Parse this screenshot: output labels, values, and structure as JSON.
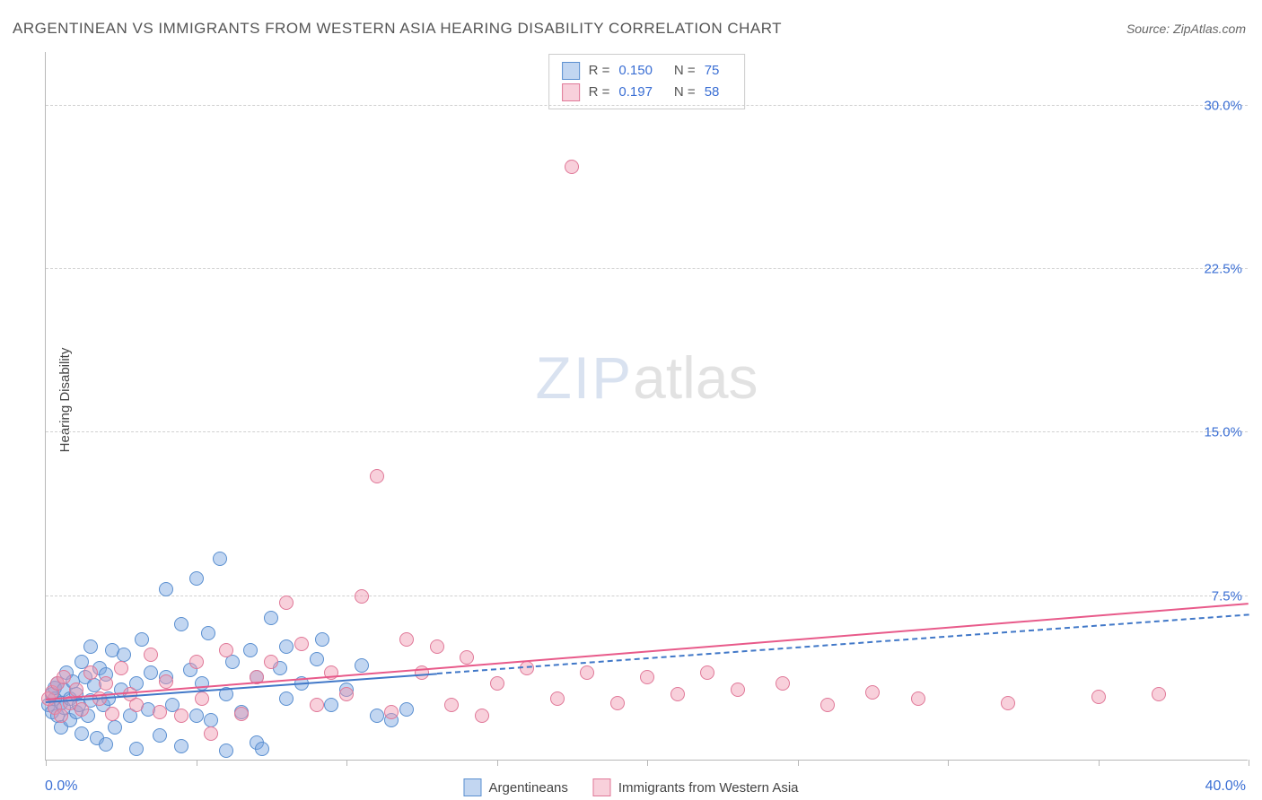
{
  "title": "ARGENTINEAN VS IMMIGRANTS FROM WESTERN ASIA HEARING DISABILITY CORRELATION CHART",
  "source_prefix": "Source: ",
  "source_name": "ZipAtlas.com",
  "watermark_zip": "ZIP",
  "watermark_atlas": "atlas",
  "yaxis_title": "Hearing Disability",
  "chart": {
    "type": "scatter",
    "xlim": [
      0,
      40
    ],
    "ylim": [
      0,
      32.5
    ],
    "x_label_start": "0.0%",
    "x_label_end": "40.0%",
    "x_label_color": "#3b6fd4",
    "y_ticks": [
      7.5,
      15.0,
      22.5,
      30.0
    ],
    "y_tick_labels": [
      "7.5%",
      "15.0%",
      "22.5%",
      "30.0%"
    ],
    "y_tick_color": "#3b6fd4",
    "x_tick_positions": [
      0,
      5,
      10,
      15,
      20,
      25,
      30,
      35,
      40
    ],
    "grid_color": "#d0d0d0",
    "background": "#ffffff",
    "point_radius": 8,
    "series": [
      {
        "name": "Argentineans",
        "fill": "rgba(120,165,225,0.45)",
        "stroke": "#5a8fd0",
        "trend": {
          "x1": 0,
          "y1": 2.6,
          "x2": 40,
          "y2": 6.6,
          "color": "#4178c8",
          "width": 2.4,
          "style": "solid-then-dashed",
          "solid_until_x": 13
        },
        "points": [
          [
            0.1,
            2.5
          ],
          [
            0.2,
            3.0
          ],
          [
            0.2,
            2.2
          ],
          [
            0.3,
            2.8
          ],
          [
            0.3,
            3.3
          ],
          [
            0.4,
            2.0
          ],
          [
            0.4,
            3.5
          ],
          [
            0.5,
            2.6
          ],
          [
            0.5,
            1.5
          ],
          [
            0.6,
            3.2
          ],
          [
            0.6,
            2.4
          ],
          [
            0.7,
            4.0
          ],
          [
            0.8,
            2.8
          ],
          [
            0.8,
            1.8
          ],
          [
            0.9,
            3.6
          ],
          [
            1.0,
            2.2
          ],
          [
            1.0,
            3.0
          ],
          [
            1.1,
            2.5
          ],
          [
            1.2,
            4.5
          ],
          [
            1.2,
            1.2
          ],
          [
            1.3,
            3.8
          ],
          [
            1.4,
            2.0
          ],
          [
            1.5,
            5.2
          ],
          [
            1.5,
            2.7
          ],
          [
            1.6,
            3.4
          ],
          [
            1.7,
            1.0
          ],
          [
            1.8,
            4.2
          ],
          [
            1.9,
            2.5
          ],
          [
            2.0,
            3.9
          ],
          [
            2.0,
            0.7
          ],
          [
            2.1,
            2.8
          ],
          [
            2.2,
            5.0
          ],
          [
            2.3,
            1.5
          ],
          [
            2.5,
            3.2
          ],
          [
            2.6,
            4.8
          ],
          [
            2.8,
            2.0
          ],
          [
            3.0,
            3.5
          ],
          [
            3.0,
            0.5
          ],
          [
            3.2,
            5.5
          ],
          [
            3.4,
            2.3
          ],
          [
            3.5,
            4.0
          ],
          [
            3.8,
            1.1
          ],
          [
            4.0,
            3.8
          ],
          [
            4.0,
            7.8
          ],
          [
            4.2,
            2.5
          ],
          [
            4.5,
            6.2
          ],
          [
            4.5,
            0.6
          ],
          [
            4.8,
            4.1
          ],
          [
            5.0,
            8.3
          ],
          [
            5.0,
            2.0
          ],
          [
            5.2,
            3.5
          ],
          [
            5.4,
            5.8
          ],
          [
            5.5,
            1.8
          ],
          [
            5.8,
            9.2
          ],
          [
            6.0,
            3.0
          ],
          [
            6.0,
            0.4
          ],
          [
            6.2,
            4.5
          ],
          [
            6.5,
            2.2
          ],
          [
            6.8,
            5.0
          ],
          [
            7.0,
            0.8
          ],
          [
            7.0,
            3.8
          ],
          [
            7.2,
            0.5
          ],
          [
            7.5,
            6.5
          ],
          [
            7.8,
            4.2
          ],
          [
            8.0,
            2.8
          ],
          [
            8.0,
            5.2
          ],
          [
            8.5,
            3.5
          ],
          [
            9.0,
            4.6
          ],
          [
            9.2,
            5.5
          ],
          [
            9.5,
            2.5
          ],
          [
            10.0,
            3.2
          ],
          [
            10.5,
            4.3
          ],
          [
            11.0,
            2.0
          ],
          [
            11.5,
            1.8
          ],
          [
            12.0,
            2.3
          ]
        ]
      },
      {
        "name": "Immigrants from Western Asia",
        "fill": "rgba(240,150,175,0.45)",
        "stroke": "#e07898",
        "trend": {
          "x1": 0,
          "y1": 2.7,
          "x2": 40,
          "y2": 7.1,
          "color": "#e85a8a",
          "width": 2.4,
          "style": "solid"
        },
        "points": [
          [
            0.1,
            2.8
          ],
          [
            0.2,
            3.1
          ],
          [
            0.3,
            2.4
          ],
          [
            0.4,
            3.5
          ],
          [
            0.5,
            2.0
          ],
          [
            0.6,
            3.8
          ],
          [
            0.8,
            2.6
          ],
          [
            1.0,
            3.2
          ],
          [
            1.2,
            2.3
          ],
          [
            1.5,
            4.0
          ],
          [
            1.8,
            2.8
          ],
          [
            2.0,
            3.5
          ],
          [
            2.2,
            2.1
          ],
          [
            2.5,
            4.2
          ],
          [
            2.8,
            3.0
          ],
          [
            3.0,
            2.5
          ],
          [
            3.5,
            4.8
          ],
          [
            3.8,
            2.2
          ],
          [
            4.0,
            3.6
          ],
          [
            4.5,
            2.0
          ],
          [
            5.0,
            4.5
          ],
          [
            5.2,
            2.8
          ],
          [
            5.5,
            1.2
          ],
          [
            6.0,
            5.0
          ],
          [
            6.5,
            2.1
          ],
          [
            7.0,
            3.8
          ],
          [
            7.5,
            4.5
          ],
          [
            8.0,
            7.2
          ],
          [
            8.5,
            5.3
          ],
          [
            9.0,
            2.5
          ],
          [
            9.5,
            4.0
          ],
          [
            10.0,
            3.0
          ],
          [
            10.5,
            7.5
          ],
          [
            11.0,
            13.0
          ],
          [
            11.5,
            2.2
          ],
          [
            12.0,
            5.5
          ],
          [
            12.5,
            4.0
          ],
          [
            13.0,
            5.2
          ],
          [
            13.5,
            2.5
          ],
          [
            14.0,
            4.7
          ],
          [
            14.5,
            2.0
          ],
          [
            15.0,
            3.5
          ],
          [
            16.0,
            4.2
          ],
          [
            17.0,
            2.8
          ],
          [
            17.5,
            27.2
          ],
          [
            18.0,
            4.0
          ],
          [
            19.0,
            2.6
          ],
          [
            20.0,
            3.8
          ],
          [
            21.0,
            3.0
          ],
          [
            22.0,
            4.0
          ],
          [
            23.0,
            3.2
          ],
          [
            24.5,
            3.5
          ],
          [
            26.0,
            2.5
          ],
          [
            27.5,
            3.1
          ],
          [
            29.0,
            2.8
          ],
          [
            32.0,
            2.6
          ],
          [
            35.0,
            2.9
          ],
          [
            37.0,
            3.0
          ]
        ]
      }
    ]
  },
  "stats_box": {
    "rows": [
      {
        "swatch_fill": "rgba(120,165,225,0.45)",
        "swatch_stroke": "#5a8fd0",
        "r_label": "R =",
        "r_val": "0.150",
        "n_label": "N =",
        "n_val": "75"
      },
      {
        "swatch_fill": "rgba(240,150,175,0.45)",
        "swatch_stroke": "#e07898",
        "r_label": "R =",
        "r_val": "0.197",
        "n_label": "N =",
        "n_val": "58"
      }
    ]
  },
  "bottom_legend": [
    {
      "swatch_fill": "rgba(120,165,225,0.45)",
      "swatch_stroke": "#5a8fd0",
      "label": "Argentineans"
    },
    {
      "swatch_fill": "rgba(240,150,175,0.45)",
      "swatch_stroke": "#e07898",
      "label": "Immigrants from Western Asia"
    }
  ]
}
